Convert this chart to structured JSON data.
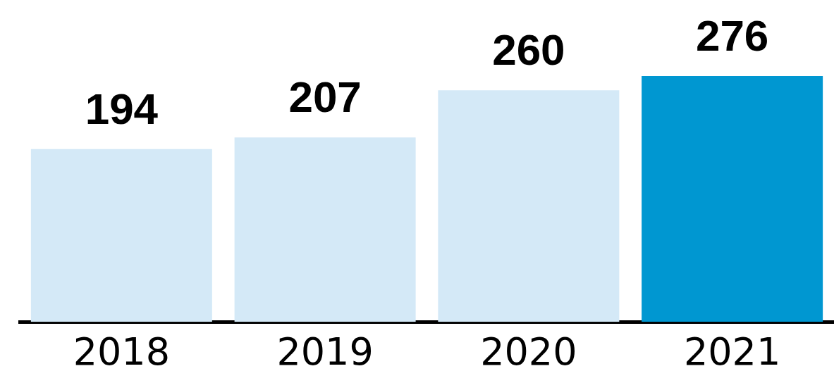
{
  "chart_data": {
    "type": "bar",
    "categories": [
      "2018",
      "2019",
      "2020",
      "2021"
    ],
    "values": [
      194,
      207,
      260,
      276
    ],
    "colors": [
      "#d4e9f7",
      "#d4e9f7",
      "#d4e9f7",
      "#0097d1"
    ],
    "data_labels": true,
    "tick_labels": "x"
  }
}
